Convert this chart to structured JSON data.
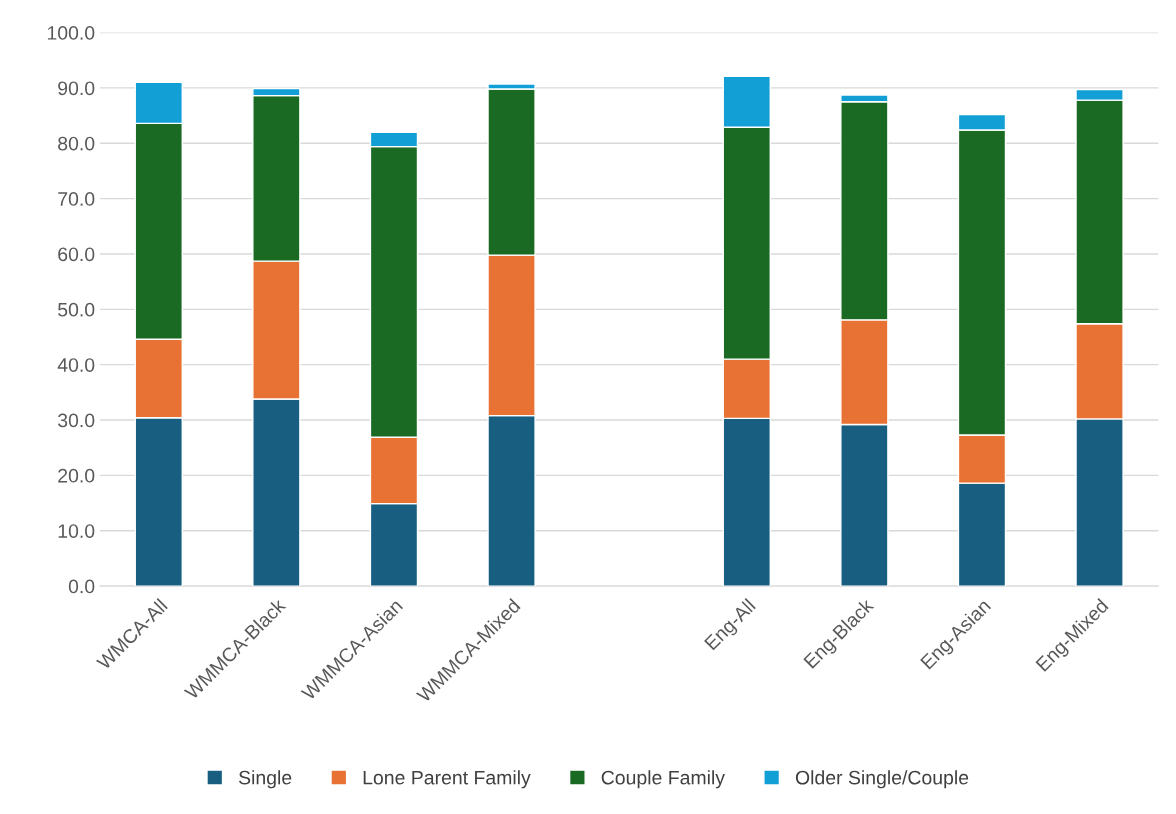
{
  "chart_data": {
    "type": "bar",
    "stacked": true,
    "categories": [
      "WMCA-All",
      "WMMCA-Black",
      "WMMCA-Asian",
      "WMMCA-Mixed",
      null,
      "Eng-All",
      "Eng-Black",
      "Eng-Asian",
      "Eng-Mixed"
    ],
    "series": [
      {
        "name": "Single",
        "color": "#175e80",
        "values": [
          30.4,
          33.8,
          14.9,
          30.8,
          null,
          30.3,
          29.2,
          18.6,
          30.2
        ]
      },
      {
        "name": "Lone Parent Family",
        "color": "#e87233",
        "values": [
          14.2,
          24.9,
          12.0,
          29.0,
          null,
          10.7,
          18.9,
          8.7,
          17.2
        ]
      },
      {
        "name": "Couple Family",
        "color": "#1b6a23",
        "values": [
          39.0,
          29.9,
          52.5,
          30.0,
          null,
          41.9,
          39.4,
          55.1,
          40.4
        ]
      },
      {
        "name": "Older Single/Couple",
        "color": "#129fd6",
        "values": [
          7.4,
          1.3,
          2.6,
          0.9,
          null,
          9.2,
          1.2,
          2.8,
          1.9
        ]
      }
    ],
    "ylim": [
      0,
      100
    ],
    "yticks": [
      {
        "value": 0,
        "label": "0.0"
      },
      {
        "value": 10,
        "label": "10.0"
      },
      {
        "value": 20,
        "label": "20.0"
      },
      {
        "value": 30,
        "label": "30.0"
      },
      {
        "value": 40,
        "label": "40.0"
      },
      {
        "value": 50,
        "label": "50.0"
      },
      {
        "value": 60,
        "label": "60.0"
      },
      {
        "value": 70,
        "label": "70.0"
      },
      {
        "value": 80,
        "label": "80.0"
      },
      {
        "value": 90,
        "label": "90.0"
      },
      {
        "value": 100,
        "label": "100.0"
      }
    ],
    "grid": "y",
    "legend": "bottom"
  }
}
